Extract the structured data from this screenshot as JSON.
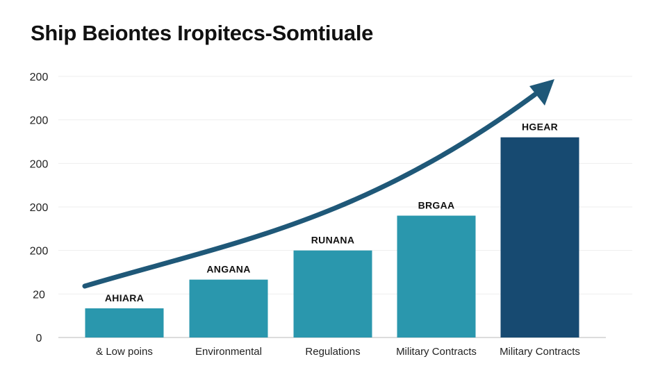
{
  "chart_data": {
    "type": "bar",
    "title": "Ship Beiontes Iropitecs-Somtiuale",
    "categories": [
      "& Low poins",
      "Environmental",
      "Regulations",
      "Military Contracts",
      "Military Contracts"
    ],
    "values": [
      0.67,
      1.33,
      2.0,
      2.8,
      4.6
    ],
    "data_labels": [
      "AHIARA",
      "ANGANA",
      "RUNANA",
      "BRGAA",
      "HGEAR"
    ],
    "y_tick_values": [
      0,
      1,
      2,
      3,
      4,
      5,
      6
    ],
    "y_tick_labels": [
      "0",
      "20",
      "200",
      "200",
      "200",
      "200",
      "200"
    ],
    "ylim": [
      0,
      6
    ],
    "xlabel": "",
    "ylabel": "",
    "grid": true,
    "trend_arrow": true,
    "colors": {
      "bar": "#2a97ad",
      "bar_highlight": "#174a71",
      "arrow": "#1f5878",
      "grid": "#eeeeee",
      "axis": "#c8c8c8"
    }
  }
}
